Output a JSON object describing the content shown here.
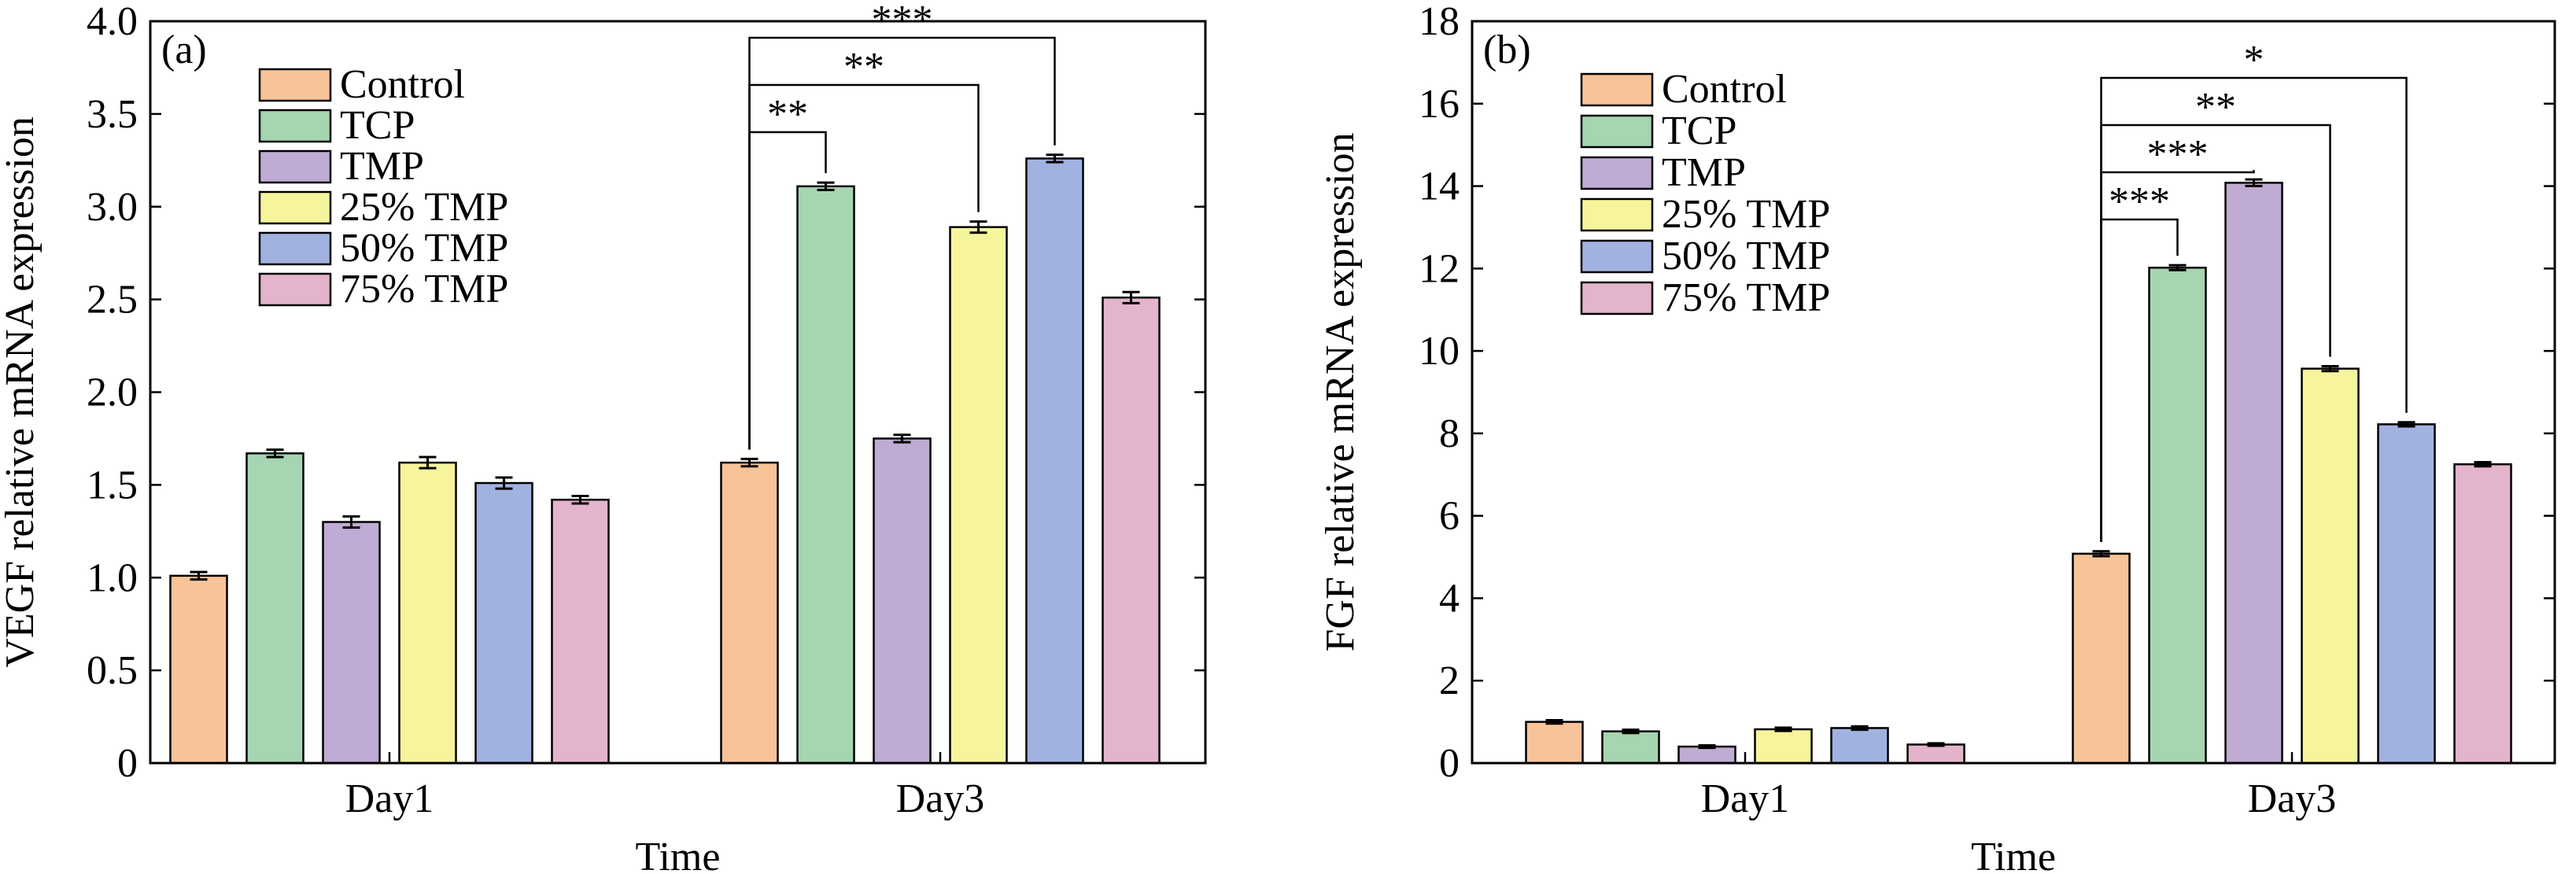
{
  "colors": {
    "Control": "#f7c398",
    "TCP": "#a6d5b1",
    "TMP": "#bfabd3",
    "25% TMP": "#f6f59c",
    "50% TMP": "#a2b2e0",
    "75% TMP": "#e4b4cc"
  },
  "chart_data": [
    {
      "type": "bar",
      "panel_tag": "(a)",
      "xlabel": "Time",
      "ylabel": "VEGF relative mRNA expression",
      "ylim": [
        0,
        4.0
      ],
      "yticks": [
        "0",
        "0.5",
        "1.0",
        "1.5",
        "2.0",
        "2.5",
        "3.0",
        "3.5",
        "4.0"
      ],
      "categories": [
        "Day1",
        "Day3"
      ],
      "legend_position": "upper-left",
      "series": [
        {
          "name": "Control",
          "values": [
            1.01,
            1.62
          ],
          "errors": [
            0.02,
            0.02
          ]
        },
        {
          "name": "TCP",
          "values": [
            1.67,
            3.11
          ],
          "errors": [
            0.02,
            0.02
          ]
        },
        {
          "name": "TMP",
          "values": [
            1.3,
            1.75
          ],
          "errors": [
            0.03,
            0.02
          ]
        },
        {
          "name": "25% TMP",
          "values": [
            1.62,
            2.89
          ],
          "errors": [
            0.03,
            0.03
          ]
        },
        {
          "name": "50% TMP",
          "values": [
            1.51,
            3.26
          ],
          "errors": [
            0.03,
            0.02
          ]
        },
        {
          "name": "75% TMP",
          "values": [
            1.42,
            2.51
          ],
          "errors": [
            0.02,
            0.03
          ]
        }
      ],
      "significance": [
        {
          "category": "Day3",
          "from": "Control",
          "to": "TCP",
          "label": "**"
        },
        {
          "category": "Day3",
          "from": "Control",
          "to": "25% TMP",
          "label": "**"
        },
        {
          "category": "Day3",
          "from": "Control",
          "to": "50% TMP",
          "label": "***"
        }
      ]
    },
    {
      "type": "bar",
      "panel_tag": "(b)",
      "xlabel": "Time",
      "ylabel": "FGF relative mRNA expression",
      "ylim": [
        0,
        18
      ],
      "yticks": [
        "0",
        "2",
        "4",
        "6",
        "8",
        "10",
        "12",
        "14",
        "16",
        "18"
      ],
      "categories": [
        "Day1",
        "Day3"
      ],
      "legend_position": "upper-left",
      "series": [
        {
          "name": "Control",
          "values": [
            1.0,
            5.08
          ],
          "errors": [
            0.04,
            0.06
          ]
        },
        {
          "name": "TCP",
          "values": [
            0.77,
            12.02
          ],
          "errors": [
            0.04,
            0.06
          ]
        },
        {
          "name": "TMP",
          "values": [
            0.4,
            14.08
          ],
          "errors": [
            0.03,
            0.08
          ]
        },
        {
          "name": "25% TMP",
          "values": [
            0.82,
            9.57
          ],
          "errors": [
            0.04,
            0.06
          ]
        },
        {
          "name": "50% TMP",
          "values": [
            0.85,
            8.22
          ],
          "errors": [
            0.04,
            0.05
          ]
        },
        {
          "name": "75% TMP",
          "values": [
            0.45,
            7.25
          ],
          "errors": [
            0.03,
            0.05
          ]
        }
      ],
      "significance": [
        {
          "category": "Day3",
          "from": "Control",
          "to": "TCP",
          "label": "***"
        },
        {
          "category": "Day3",
          "from": "Control",
          "to": "TMP",
          "label": "***"
        },
        {
          "category": "Day3",
          "from": "Control",
          "to": "25% TMP",
          "label": "**"
        },
        {
          "category": "Day3",
          "from": "Control",
          "to": "50% TMP",
          "label": "*"
        }
      ]
    }
  ]
}
